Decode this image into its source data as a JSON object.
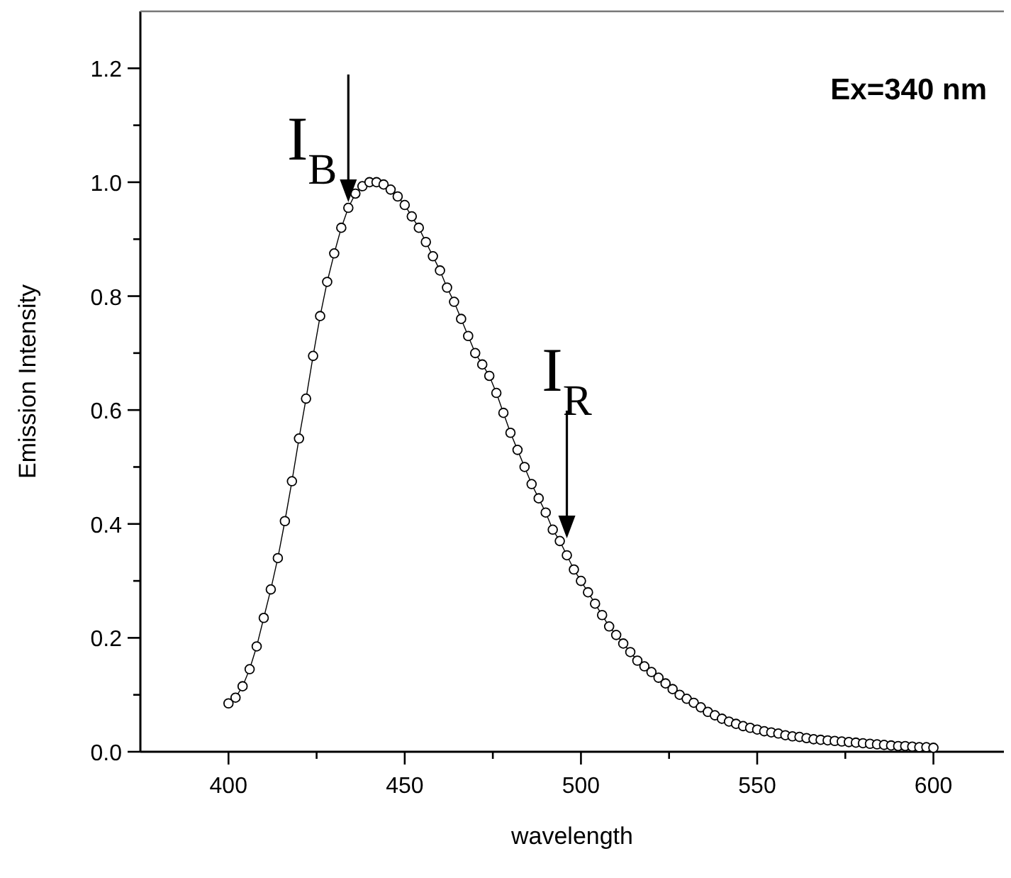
{
  "chart_data": {
    "type": "line",
    "xlabel": "wavelength",
    "ylabel": "Emission Intensity",
    "x": [
      400,
      402,
      404,
      406,
      408,
      410,
      412,
      414,
      416,
      418,
      420,
      422,
      424,
      426,
      428,
      430,
      432,
      434,
      436,
      438,
      440,
      442,
      444,
      446,
      448,
      450,
      452,
      454,
      456,
      458,
      460,
      462,
      464,
      466,
      468,
      470,
      472,
      474,
      476,
      478,
      480,
      482,
      484,
      486,
      488,
      490,
      492,
      494,
      496,
      498,
      500,
      502,
      504,
      506,
      508,
      510,
      512,
      514,
      516,
      518,
      520,
      522,
      524,
      526,
      528,
      530,
      532,
      534,
      536,
      538,
      540,
      542,
      544,
      546,
      548,
      550,
      552,
      554,
      556,
      558,
      560,
      562,
      564,
      566,
      568,
      570,
      572,
      574,
      576,
      578,
      580,
      582,
      584,
      586,
      588,
      590,
      592,
      594,
      596,
      598,
      600
    ],
    "series": [
      {
        "color": "#000000",
        "values": [
          0.085,
          0.095,
          0.115,
          0.145,
          0.185,
          0.235,
          0.285,
          0.34,
          0.405,
          0.475,
          0.55,
          0.62,
          0.695,
          0.765,
          0.825,
          0.875,
          0.92,
          0.955,
          0.98,
          0.993,
          1.0,
          1.0,
          0.996,
          0.987,
          0.975,
          0.96,
          0.94,
          0.92,
          0.895,
          0.87,
          0.845,
          0.815,
          0.79,
          0.76,
          0.73,
          0.7,
          0.68,
          0.66,
          0.63,
          0.595,
          0.56,
          0.53,
          0.5,
          0.47,
          0.445,
          0.42,
          0.39,
          0.37,
          0.345,
          0.32,
          0.3,
          0.28,
          0.26,
          0.24,
          0.22,
          0.205,
          0.19,
          0.175,
          0.16,
          0.15,
          0.14,
          0.13,
          0.12,
          0.11,
          0.1,
          0.093,
          0.086,
          0.078,
          0.07,
          0.064,
          0.058,
          0.053,
          0.049,
          0.045,
          0.042,
          0.039,
          0.036,
          0.034,
          0.032,
          0.029,
          0.027,
          0.026,
          0.024,
          0.022,
          0.021,
          0.02,
          0.019,
          0.018,
          0.017,
          0.016,
          0.015,
          0.014,
          0.013,
          0.012,
          0.011,
          0.01,
          0.01,
          0.009,
          0.008,
          0.008,
          0.007
        ]
      }
    ],
    "xlim": [
      375,
      620
    ],
    "ylim": [
      0,
      1.3
    ],
    "xticks": [
      400,
      {
        "value": 425,
        "label": null
      },
      450,
      {
        "value": 475,
        "label": null
      },
      500,
      {
        "value": 525,
        "label": null
      },
      550,
      {
        "value": 575,
        "label": null
      },
      600
    ],
    "yticks": [
      {
        "value": 0,
        "label": "0.0"
      },
      {
        "value": 0.1,
        "label": null
      },
      0.2,
      {
        "value": 0.3,
        "label": null
      },
      0.4,
      {
        "value": 0.5,
        "label": null
      },
      0.6,
      {
        "value": 0.7,
        "label": null
      },
      0.8,
      {
        "value": 0.9,
        "label": null
      },
      {
        "value": 1,
        "label": "1.0"
      },
      {
        "value": 1.1,
        "label": null
      },
      1.2
    ],
    "marker": "circle",
    "line_style": "solid",
    "grid": false,
    "annotations": [
      "Ex=340 nm",
      {
        "text": "I$_{B}$",
        "x": 434,
        "y": 0.955
      },
      {
        "text": "I$_{R}$",
        "x": 496,
        "y": 0.345
      }
    ]
  }
}
